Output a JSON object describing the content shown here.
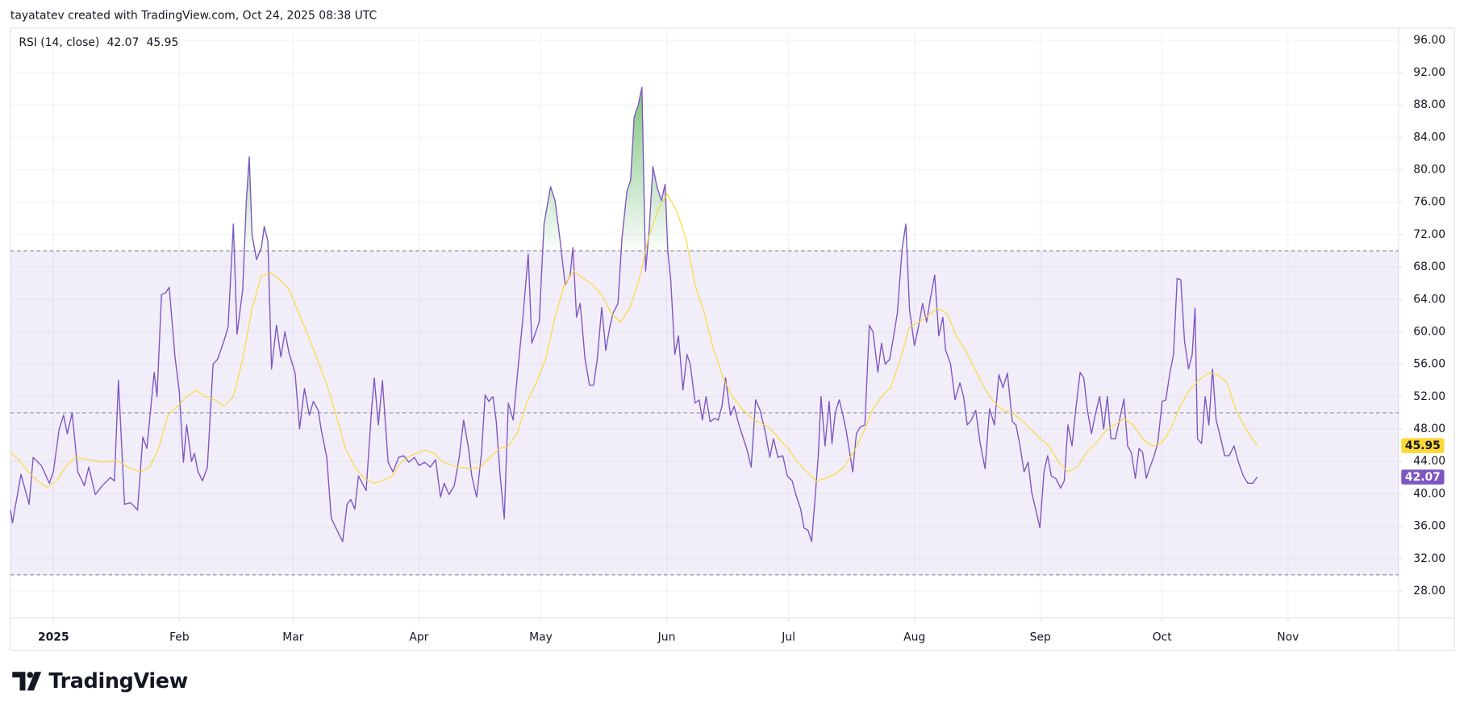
{
  "header": "tayatatev created with TradingView.com, Oct 24, 2025 08:38 UTC",
  "footer": {
    "brand": "TradingView"
  },
  "chart_data": {
    "type": "line",
    "indicator_label": "RSI (14, close)",
    "xlim": [
      -10.6,
      331.2
    ],
    "ylim": [
      24.7,
      97.5
    ],
    "xticks": [
      {
        "value": 0,
        "label": "2025"
      },
      {
        "value": 31,
        "label": "Feb"
      },
      {
        "value": 59,
        "label": "Mar"
      },
      {
        "value": 90,
        "label": "Apr"
      },
      {
        "value": 120,
        "label": "May"
      },
      {
        "value": 151,
        "label": "Jun"
      },
      {
        "value": 181,
        "label": "Jul"
      },
      {
        "value": 212,
        "label": "Aug"
      },
      {
        "value": 243,
        "label": "Sep"
      },
      {
        "value": 273,
        "label": "Oct"
      },
      {
        "value": 304,
        "label": "Nov"
      }
    ],
    "yticks": [
      {
        "value": 28,
        "label": "28.00"
      },
      {
        "value": 32,
        "label": "32.00"
      },
      {
        "value": 36,
        "label": "36.00"
      },
      {
        "value": 40,
        "label": "40.00"
      },
      {
        "value": 44,
        "label": "44.00"
      },
      {
        "value": 48,
        "label": "48.00"
      },
      {
        "value": 52,
        "label": "52.00"
      },
      {
        "value": 56,
        "label": "56.00"
      },
      {
        "value": 60,
        "label": "60.00"
      },
      {
        "value": 64,
        "label": "64.00"
      },
      {
        "value": 68,
        "label": "68.00"
      },
      {
        "value": 72,
        "label": "72.00"
      },
      {
        "value": 76,
        "label": "76.00"
      },
      {
        "value": 80,
        "label": "80.00"
      },
      {
        "value": 84,
        "label": "84.00"
      },
      {
        "value": 88,
        "label": "88.00"
      },
      {
        "value": 92,
        "label": "92.00"
      },
      {
        "value": 96,
        "label": "96.00"
      }
    ],
    "grid": true,
    "band": {
      "upper": 70,
      "middle": 50,
      "lower": 30,
      "fill": "#7e57c2",
      "line_color": "#787b86",
      "overbought_fill": "#4caf50"
    },
    "series": [
      {
        "color": "#7e57c2",
        "x": [
          -10.6,
          -10.1,
          -8,
          -6,
          -5,
          -3,
          -1,
          0,
          1.4,
          2.5,
          3.4,
          4.6,
          6,
          7.6,
          8.7,
          10.3,
          12,
          14,
          15,
          16,
          17.5,
          19,
          20.7,
          22,
          23,
          24.8,
          25.5,
          26.6,
          27.6,
          28.5,
          29.9,
          31,
          32,
          32.8,
          34,
          34.7,
          35.6,
          36.7,
          37.9,
          39.3,
          40.4,
          42,
          43,
          44.3,
          45.2,
          46.6,
          47.5,
          48.2,
          48.9,
          50,
          51.2,
          51.9,
          52.8,
          53.7,
          54.9,
          56,
          57,
          58,
          59.5,
          60.6,
          61.8,
          63,
          64,
          65.2,
          65.9,
          67.3,
          68.4,
          70,
          71.2,
          72.3,
          73.2,
          74.2,
          75.1,
          77,
          78.3,
          79,
          80,
          81,
          82.4,
          83.6,
          85,
          86.3,
          87.5,
          88.9,
          90,
          91.4,
          92.8,
          94.1,
          95.3,
          96.2,
          97.4,
          98.7,
          99.9,
          101,
          102.2,
          103,
          104.2,
          105.4,
          106.3,
          107.2,
          108.2,
          109,
          110,
          111,
          112,
          113.2,
          114.6,
          115.5,
          116.9,
          117.8,
          119.6,
          120.8,
          122.4,
          123.5,
          124.7,
          126,
          127.2,
          127.9,
          128.8,
          129.7,
          130.9,
          132,
          133,
          133.9,
          135,
          136,
          137,
          137.8,
          139,
          140,
          141.2,
          142.1,
          143,
          144,
          144.9,
          145.8,
          146.7,
          147.6,
          148.6,
          149.7,
          150.6,
          151.3,
          152,
          153,
          153.9,
          155,
          156,
          156.8,
          158,
          159,
          159.8,
          160.7,
          161.7,
          162.8,
          163.7,
          164.6,
          165.5,
          166.7,
          167.6,
          168.8,
          169.9,
          170.8,
          171.8,
          172.9,
          174,
          175.2,
          176.4,
          177.3,
          178.4,
          179.6,
          180.7,
          181.9,
          182.8,
          184,
          184.8,
          185.8,
          186.7,
          187.6,
          188.3,
          189,
          190,
          191,
          191.7,
          192.5,
          193.5,
          194.4,
          195.2,
          196.1,
          196.8,
          197.7,
          198.6,
          199.8,
          200.9,
          201.8,
          203,
          203.9,
          204.8,
          205.9,
          206.9,
          207.8,
          209,
          209.9,
          210.8,
          212,
          213,
          214,
          215,
          216,
          217,
          218,
          219,
          219.7,
          220.9,
          222,
          223.2,
          224.1,
          225,
          226,
          227.1,
          228.2,
          229.4,
          230.5,
          231.7,
          232.8,
          233.8,
          234.9,
          236.1,
          237,
          237.9,
          239,
          240,
          240.9,
          242,
          242.9,
          243.9,
          244.8,
          245.7,
          246.8,
          248,
          248.9,
          249.8,
          250.8,
          251.7,
          252.8,
          253.7,
          254.6,
          255.6,
          256.5,
          257.6,
          258.6,
          259.5,
          260.4,
          261.5,
          262.5,
          263.6,
          264.5,
          265.4,
          266.4,
          267.3,
          268.2,
          269.1,
          270,
          270.9,
          271.9,
          273,
          273.9,
          274.9,
          275.8,
          276.7,
          277.6,
          278.5,
          279.5,
          280.4,
          281.1,
          281.7,
          282.7,
          283.6,
          284.5,
          285.4,
          286.3,
          287.3,
          288.4,
          289.5,
          290.7,
          291.8,
          293,
          294.1,
          295.3,
          296.4
        ],
        "values": [
          38,
          36.4,
          42.4,
          38.7,
          44.5,
          43.5,
          41.3,
          42.8,
          48,
          49.7,
          47.4,
          50,
          42.7,
          41,
          43.3,
          39.9,
          41,
          42,
          41.6,
          54,
          38.7,
          38.9,
          38,
          47,
          45.6,
          55,
          52,
          64.6,
          64.8,
          65.5,
          57,
          52.5,
          43.9,
          48.5,
          44,
          45,
          42.7,
          41.6,
          43.3,
          56,
          56.6,
          58.9,
          60.6,
          73.3,
          59.7,
          65.2,
          76.2,
          81.6,
          72,
          68.9,
          70.4,
          73,
          71.2,
          55.4,
          60.8,
          56.9,
          60,
          57.4,
          54.9,
          48,
          53,
          49.7,
          51.4,
          50.3,
          48,
          44.5,
          37,
          35.3,
          34.1,
          38.7,
          39.3,
          38.1,
          42.2,
          40.4,
          50.2,
          54.3,
          48.5,
          54,
          43.9,
          42.7,
          44.5,
          44.7,
          43.9,
          44.5,
          43.5,
          43.9,
          43.3,
          44.2,
          39.6,
          41.3,
          39.9,
          41,
          44.5,
          49.1,
          45.6,
          42.2,
          39.6,
          45,
          52.2,
          51.4,
          52,
          49.1,
          42.2,
          36.9,
          51.2,
          49.1,
          56.6,
          61.2,
          69.6,
          58.6,
          61.2,
          73.3,
          77.9,
          76.2,
          71.5,
          65.8,
          66.9,
          70.4,
          61.8,
          63.5,
          56.6,
          53.4,
          53.4,
          56.6,
          63,
          57.7,
          60.6,
          62.3,
          63.5,
          71.6,
          77.3,
          78.7,
          86.5,
          88,
          90.2,
          67.5,
          72.7,
          80.4,
          77.9,
          76.2,
          78.2,
          69.8,
          66.4,
          57.2,
          59.5,
          52.8,
          57.2,
          56,
          51.2,
          51.6,
          49.1,
          52,
          48.9,
          49.3,
          49.1,
          50.8,
          54.3,
          49.7,
          50.8,
          48.5,
          46.8,
          45.4,
          43.3,
          51.6,
          50.3,
          47.8,
          44.5,
          46.8,
          44.5,
          44.7,
          42.2,
          41.6,
          39.9,
          38.1,
          35.8,
          35.5,
          34.1,
          39.9,
          44.5,
          52,
          45.9,
          51.4,
          46.2,
          50,
          51.6,
          49.7,
          47.8,
          45,
          42.7,
          47.4,
          48.2,
          48.5,
          60.8,
          60,
          55,
          58.6,
          56,
          56.6,
          59.5,
          62.3,
          70.4,
          73.3,
          62.7,
          58.3,
          60.6,
          63.5,
          61.2,
          64.3,
          67,
          59.5,
          61.8,
          57.7,
          56,
          51.6,
          53.7,
          52,
          48.5,
          49.1,
          50.3,
          46.2,
          43.1,
          50.5,
          48.5,
          54.7,
          53.1,
          54.9,
          48.9,
          48.5,
          46.2,
          42.7,
          43.9,
          40.1,
          37.8,
          35.8,
          42.7,
          44.7,
          42.2,
          41.9,
          40.7,
          41.6,
          48.5,
          45.9,
          50.3,
          55,
          54.3,
          50.3,
          47.4,
          49.7,
          52,
          48,
          52,
          46.8,
          46.8,
          49.1,
          51.7,
          45.9,
          45.1,
          41.9,
          45.6,
          45.1,
          41.9,
          43.3,
          44.5,
          46.2,
          51.4,
          51.6,
          54.9,
          57.2,
          66.6,
          66.4,
          58.9,
          55.4,
          57.2,
          62.9,
          46.8,
          46.2,
          52,
          48.5,
          55.4,
          49.1,
          47.1,
          44.7,
          44.7,
          45.9,
          43.9,
          42.2,
          41.3,
          41.3,
          42.07
        ],
        "badge_text_color": "#ffffff"
      },
      {
        "color": "#fdd835",
        "x": [
          -10.6,
          -8.5,
          -6.2,
          -3.9,
          -1.6,
          0.7,
          3,
          5.3,
          8.7,
          12.2,
          15.6,
          19.1,
          21.4,
          23.7,
          25.9,
          28.2,
          30.5,
          32.8,
          35.1,
          37.4,
          39.7,
          42,
          44.3,
          46.6,
          48.9,
          51.2,
          53.5,
          55.8,
          58.1,
          60.4,
          62.7,
          65,
          67.3,
          69.6,
          71.9,
          74.2,
          76.5,
          78.8,
          81.1,
          83.4,
          85.6,
          87.9,
          91.4,
          93.7,
          96,
          99.4,
          102.9,
          105.2,
          107.5,
          109.8,
          112.1,
          114.4,
          116.6,
          118.9,
          121.2,
          123.5,
          125.8,
          128.1,
          130.4,
          132.7,
          135,
          137.3,
          139.6,
          141.9,
          144.2,
          146.5,
          148.8,
          151.1,
          153.4,
          155.7,
          158,
          160.3,
          162.6,
          164.9,
          167.2,
          169.5,
          171.8,
          174.1,
          176.3,
          178.6,
          180.9,
          183.2,
          185.5,
          187.8,
          190.1,
          192.4,
          194.7,
          197,
          199.3,
          201.6,
          203.9,
          206.2,
          208.5,
          210.8,
          213.1,
          215.4,
          217.7,
          220,
          222.3,
          224.6,
          226.9,
          229.2,
          231.5,
          233.8,
          236.1,
          238.3,
          240.6,
          242.9,
          245.2,
          247.5,
          249.8,
          252.1,
          254.4,
          256.7,
          259,
          261.3,
          263.6,
          265.9,
          268.2,
          270.5,
          272.8,
          275.1,
          277.4,
          279.7,
          282,
          284.3,
          286.6,
          288.9,
          291.2,
          293.6,
          296.4
        ],
        "values": [
          45.1,
          44.2,
          42.7,
          41.6,
          40.8,
          41.6,
          43.3,
          44.5,
          44.2,
          43.9,
          44.1,
          43.1,
          42.7,
          43.3,
          45.6,
          49.7,
          50.8,
          52,
          52.8,
          52,
          51.6,
          50.8,
          52,
          56.6,
          62.9,
          66.9,
          67.3,
          66.4,
          65.2,
          62.3,
          59.5,
          56.6,
          53.5,
          49.7,
          45.6,
          43.3,
          41.9,
          41.3,
          41.6,
          42.2,
          43.9,
          44.7,
          45.4,
          45,
          43.9,
          43.3,
          43.1,
          43.3,
          44.5,
          45.6,
          45.9,
          47.7,
          51.4,
          53.7,
          56.6,
          61.8,
          65.8,
          67.5,
          66.6,
          65.8,
          64.6,
          62.3,
          61.2,
          62.9,
          66.4,
          71.6,
          75,
          77,
          75,
          71.6,
          65.8,
          62.3,
          57.7,
          54.3,
          52,
          50.5,
          49.4,
          48.7,
          48.2,
          46.8,
          45.6,
          43.9,
          42.7,
          41.6,
          41.9,
          42.4,
          43.3,
          45.1,
          47.4,
          50.3,
          52,
          53.1,
          56.6,
          60.6,
          61.2,
          62,
          62.9,
          62.3,
          59.5,
          57.7,
          55.4,
          53.1,
          51.4,
          50.3,
          50,
          49.1,
          48,
          46.8,
          45.9,
          43.9,
          42.7,
          43.3,
          45.1,
          46.2,
          47.7,
          48.5,
          49.3,
          48.5,
          46.8,
          45.9,
          46.2,
          48,
          50.8,
          52.8,
          54,
          54.9,
          54.7,
          53.8,
          50.3,
          48,
          45.95
        ],
        "badge_text_color": "#131722"
      }
    ]
  }
}
